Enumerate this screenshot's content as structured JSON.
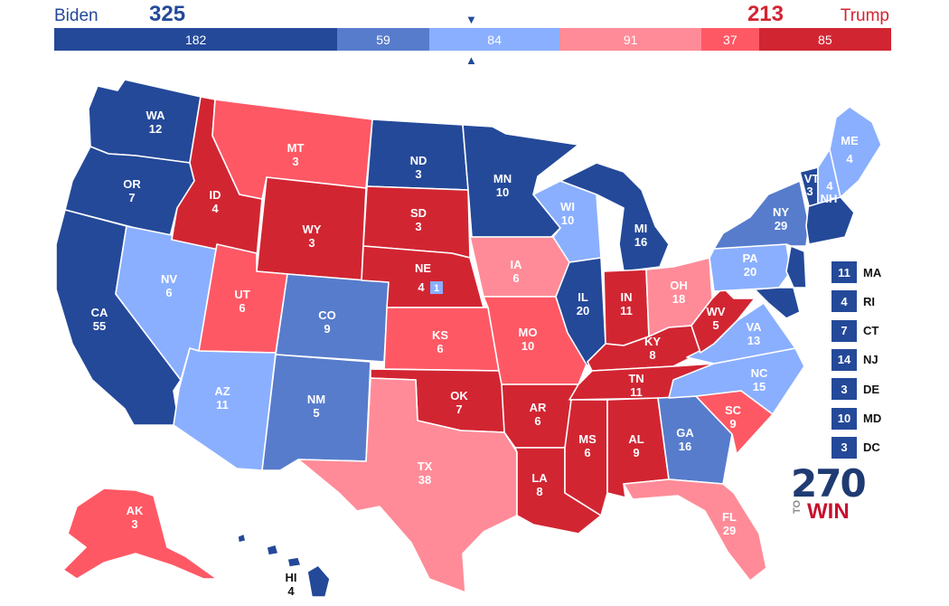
{
  "header": {
    "biden_name": "Biden",
    "biden_total": "325",
    "trump_total": "213",
    "trump_name": "Trump",
    "midpoint_top": "▼",
    "midpoint_bottom": "▲"
  },
  "bar_segments": [
    {
      "label": "182",
      "value": 182,
      "color": "#244999"
    },
    {
      "label": "59",
      "value": 59,
      "color": "#577ccc"
    },
    {
      "label": "84",
      "value": 84,
      "color": "#8aafff"
    },
    {
      "label": "91",
      "value": 91,
      "color": "#ff8b98"
    },
    {
      "label": "37",
      "value": 37,
      "color": "#ff5865"
    },
    {
      "label": "85",
      "value": 85,
      "color": "#d22532"
    }
  ],
  "colors": {
    "safe_d": "#244999",
    "likely_d": "#577ccc",
    "lean_d": "#8aafff",
    "lean_r": "#ff8b98",
    "likely_r": "#ff5865",
    "safe_r": "#d22532"
  },
  "states": {
    "WA": {
      "abbr": "WA",
      "ev": "12"
    },
    "OR": {
      "abbr": "OR",
      "ev": "7"
    },
    "CA": {
      "abbr": "CA",
      "ev": "55"
    },
    "NV": {
      "abbr": "NV",
      "ev": "6"
    },
    "ID": {
      "abbr": "ID",
      "ev": "4"
    },
    "MT": {
      "abbr": "MT",
      "ev": "3"
    },
    "WY": {
      "abbr": "WY",
      "ev": "3"
    },
    "UT": {
      "abbr": "UT",
      "ev": "6"
    },
    "AZ": {
      "abbr": "AZ",
      "ev": "11"
    },
    "CO": {
      "abbr": "CO",
      "ev": "9"
    },
    "NM": {
      "abbr": "NM",
      "ev": "5"
    },
    "ND": {
      "abbr": "ND",
      "ev": "3"
    },
    "SD": {
      "abbr": "SD",
      "ev": "3"
    },
    "NE": {
      "abbr": "NE",
      "ev": "4",
      "cd_ev": "1"
    },
    "KS": {
      "abbr": "KS",
      "ev": "6"
    },
    "OK": {
      "abbr": "OK",
      "ev": "7"
    },
    "TX": {
      "abbr": "TX",
      "ev": "38"
    },
    "MN": {
      "abbr": "MN",
      "ev": "10"
    },
    "IA": {
      "abbr": "IA",
      "ev": "6"
    },
    "MO": {
      "abbr": "MO",
      "ev": "10"
    },
    "AR": {
      "abbr": "AR",
      "ev": "6"
    },
    "LA": {
      "abbr": "LA",
      "ev": "8"
    },
    "WI": {
      "abbr": "WI",
      "ev": "10"
    },
    "IL": {
      "abbr": "IL",
      "ev": "20"
    },
    "MI": {
      "abbr": "MI",
      "ev": "16"
    },
    "IN": {
      "abbr": "IN",
      "ev": "11"
    },
    "OH": {
      "abbr": "OH",
      "ev": "18"
    },
    "KY": {
      "abbr": "KY",
      "ev": "8"
    },
    "TN": {
      "abbr": "TN",
      "ev": "11"
    },
    "MS": {
      "abbr": "MS",
      "ev": "6"
    },
    "AL": {
      "abbr": "AL",
      "ev": "9"
    },
    "GA": {
      "abbr": "GA",
      "ev": "16"
    },
    "FL": {
      "abbr": "FL",
      "ev": "29"
    },
    "SC": {
      "abbr": "SC",
      "ev": "9"
    },
    "NC": {
      "abbr": "NC",
      "ev": "15"
    },
    "VA": {
      "abbr": "VA",
      "ev": "13"
    },
    "WV": {
      "abbr": "WV",
      "ev": "5"
    },
    "PA": {
      "abbr": "PA",
      "ev": "20"
    },
    "NY": {
      "abbr": "NY",
      "ev": "29"
    },
    "VT": {
      "abbr": "VT",
      "ev": "3"
    },
    "NH": {
      "abbr": "NH",
      "ev": "4"
    },
    "ME": {
      "abbr": "ME",
      "ev": "4"
    },
    "AK": {
      "abbr": "AK",
      "ev": "3"
    },
    "HI": {
      "abbr": "HI",
      "ev": "4"
    }
  },
  "small_states": [
    {
      "ev": "11",
      "abbr": "MA"
    },
    {
      "ev": "4",
      "abbr": "RI"
    },
    {
      "ev": "7",
      "abbr": "CT"
    },
    {
      "ev": "14",
      "abbr": "NJ"
    },
    {
      "ev": "3",
      "abbr": "DE"
    },
    {
      "ev": "10",
      "abbr": "MD"
    },
    {
      "ev": "3",
      "abbr": "DC"
    }
  ],
  "logo": {
    "number": "270",
    "to": "TO",
    "win": "WIN"
  }
}
